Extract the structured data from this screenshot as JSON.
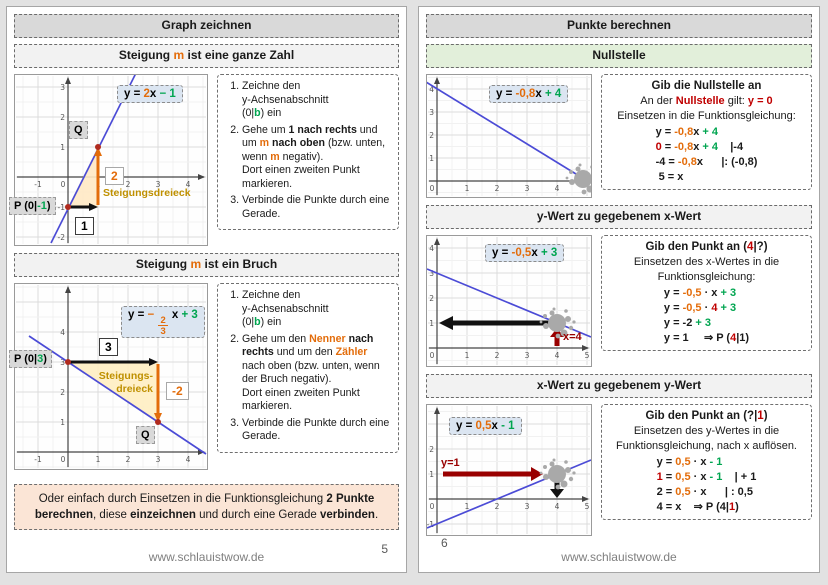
{
  "colors": {
    "orange": "#e36c0a",
    "green": "#00a550",
    "red": "#c00000",
    "dark_red": "#990000",
    "gold": "#bf9000",
    "line_blue": "#4b4bd6",
    "header_gray": "#d9d9d9",
    "section_gray": "#f2f2f2",
    "section_green": "#e2efda",
    "note_bg": "#fbe5d6",
    "eq_box_bg": "#dbe5f1"
  },
  "left": {
    "title": "Graph zeichnen",
    "footer_url": "www.schlauistwow.de",
    "page_number": "5",
    "sec1": {
      "heading": [
        [
          "Steigung ",
          "b"
        ],
        [
          "m",
          "bo"
        ],
        [
          " ist eine ganze Zahl",
          "b"
        ]
      ],
      "equation": [
        [
          "y = ",
          "b"
        ],
        [
          "2",
          "bo"
        ],
        [
          "x ",
          "b"
        ],
        [
          "− 1",
          "bg"
        ]
      ],
      "p_label": [
        [
          "P (0|",
          "b"
        ],
        [
          "-1",
          "bg"
        ],
        [
          ")",
          "b"
        ]
      ],
      "q_label": [
        [
          "Q",
          "b"
        ]
      ],
      "run_label": [
        [
          "1",
          "b"
        ]
      ],
      "rise_label": [
        [
          "2",
          "bo"
        ]
      ],
      "triangle_label": [
        [
          "Steigungsdreieck",
          "by"
        ]
      ],
      "steps": [
        [
          [
            "Zeichne den\n y-Achsenabschnitt\n(0|",
            ""
          ],
          [
            "b",
            "bg"
          ],
          [
            ") ein",
            ""
          ]
        ],
        [
          [
            "Gehe um ",
            ""
          ],
          [
            "1 nach rechts",
            "b"
          ],
          [
            " und um ",
            ""
          ],
          [
            "m",
            "bo"
          ],
          [
            " ",
            ""
          ],
          [
            "nach oben",
            "b"
          ],
          [
            " (bzw. unten, wenn ",
            ""
          ],
          [
            "m",
            "bo"
          ],
          [
            " negativ).\nDort einen zweiten Punkt markieren.",
            ""
          ]
        ],
        [
          [
            "Verbinde die Punkte durch eine Gerade.",
            ""
          ]
        ]
      ]
    },
    "sec2": {
      "heading": [
        [
          "Steigung ",
          "b"
        ],
        [
          "m",
          "bo"
        ],
        [
          " ist ein Bruch",
          "b"
        ]
      ],
      "equation": [
        [
          "y = ",
          "b"
        ],
        [
          "− ",
          "bo"
        ],
        [
          "2/3",
          "bof"
        ],
        [
          " x ",
          "b"
        ],
        [
          "+ 3",
          "bg"
        ]
      ],
      "p_label": [
        [
          "P (0|",
          "b"
        ],
        [
          "3",
          "bg"
        ],
        [
          ")",
          "b"
        ]
      ],
      "q_label": [
        [
          "Q",
          "b"
        ]
      ],
      "run_label": [
        [
          "3",
          "b"
        ]
      ],
      "rise_label": [
        [
          "-2",
          "bo"
        ]
      ],
      "triangle_label": [
        [
          "Steigungs-\ndreieck",
          "by"
        ]
      ],
      "steps": [
        [
          [
            "Zeichne den\n y-Achsenabschnitt\n(0|",
            ""
          ],
          [
            "b",
            "bg"
          ],
          [
            ") ein",
            ""
          ]
        ],
        [
          [
            "Gehe um den ",
            ""
          ],
          [
            "Nenner",
            "bo"
          ],
          [
            " ",
            ""
          ],
          [
            "nach rechts",
            "b"
          ],
          [
            " und um den ",
            ""
          ],
          [
            "Zähler",
            "bo"
          ],
          [
            " nach oben (bzw. unten, wenn der Bruch negativ).\nDort einen zweiten Punkt markieren.",
            ""
          ]
        ],
        [
          [
            "Verbinde die Punkte durch eine Gerade.",
            ""
          ]
        ]
      ]
    },
    "note": [
      [
        "Oder einfach durch Einsetzen in die Funktionsgleichung ",
        ""
      ],
      [
        "2 Punkte berechnen",
        "b"
      ],
      [
        ", diese ",
        ""
      ],
      [
        "einzeichnen",
        "b"
      ],
      [
        " und durch eine Gerade ",
        ""
      ],
      [
        "verbinden",
        "b"
      ],
      [
        ".",
        ""
      ]
    ]
  },
  "right": {
    "title": "Punkte berechnen",
    "footer_url": "www.schlauistwow.de",
    "page_number": "6",
    "nullstelle": {
      "heading": "Nullstelle",
      "equation": [
        [
          "y = ",
          "b"
        ],
        [
          "-0,8",
          "bo"
        ],
        [
          "x ",
          "b"
        ],
        [
          "+ 4",
          "bg"
        ]
      ],
      "box": {
        "title": [
          [
            "Gib die Nullstelle an",
            "b"
          ]
        ],
        "intro1": [
          [
            "An der ",
            ""
          ],
          [
            "Nullstelle",
            "br"
          ],
          [
            " gilt: ",
            ""
          ],
          [
            "y = 0",
            "br"
          ]
        ],
        "intro2": [
          [
            "Einsetzen in die Funktionsgleichung:",
            ""
          ]
        ],
        "eqs": [
          [
            [
              "y = ",
              "b"
            ],
            [
              "-0,8",
              "bo"
            ],
            [
              "x",
              "b"
            ],
            [
              " + 4",
              "bg"
            ]
          ],
          [
            [
              "0",
              "br"
            ],
            [
              " = ",
              "b"
            ],
            [
              "-0,8",
              "bo"
            ],
            [
              "x",
              "b"
            ],
            [
              " + 4",
              "bg"
            ],
            [
              "    |-4",
              "b"
            ]
          ],
          [
            [
              "-4 = ",
              "b"
            ],
            [
              "-0,8",
              "bo"
            ],
            [
              "x",
              "b"
            ],
            [
              "      |: (-0,8)",
              "b"
            ]
          ],
          [
            [
              " 5 = x",
              "b"
            ]
          ]
        ]
      }
    },
    "y_from_x": {
      "heading": "y-Wert zu gegebenem x-Wert",
      "equation": [
        [
          "y = ",
          "b"
        ],
        [
          "-0,5",
          "bo"
        ],
        [
          "x ",
          "b"
        ],
        [
          "+ 3",
          "bg"
        ]
      ],
      "x_marker": "x=4",
      "box": {
        "title": [
          [
            "Gib den Punkt an (",
            "b"
          ],
          [
            "4",
            "br"
          ],
          [
            "|?)",
            "b"
          ]
        ],
        "intro1": [
          [
            "Einsetzen des x-Wertes in die Funktionsgleichung:",
            ""
          ]
        ],
        "eqs": [
          [
            [
              "y = ",
              "b"
            ],
            [
              "-0,5",
              "bo"
            ],
            [
              " · x ",
              "b"
            ],
            [
              "+ 3",
              "bg"
            ]
          ],
          [
            [
              "y = ",
              "b"
            ],
            [
              "-0,5",
              "bo"
            ],
            [
              " · ",
              "b"
            ],
            [
              "4",
              "br"
            ],
            [
              " + 3",
              "bg"
            ]
          ],
          [
            [
              "y = -2 ",
              "b"
            ],
            [
              "+ 3",
              "bg"
            ]
          ],
          [
            [
              "y = 1",
              "b"
            ],
            [
              "     ⇒ P (",
              "b"
            ],
            [
              "4",
              "br"
            ],
            [
              "|1)",
              "b"
            ]
          ]
        ]
      }
    },
    "x_from_y": {
      "heading": "x-Wert zu gegebenem y-Wert",
      "equation": [
        [
          "y = ",
          "b"
        ],
        [
          "0,5",
          "bo"
        ],
        [
          "x ",
          "b"
        ],
        [
          "- 1",
          "bg"
        ]
      ],
      "y_marker": "y=1",
      "box": {
        "title": [
          [
            "Gib den Punkt an (?|",
            "b"
          ],
          [
            "1",
            "br"
          ],
          [
            ")",
            "b"
          ]
        ],
        "intro1": [
          [
            "Einsetzen des y-Wertes in die Funktionsgleichung, nach x auflösen.",
            ""
          ]
        ],
        "eqs": [
          [
            [
              "y = ",
              "b"
            ],
            [
              "0,5",
              "bo"
            ],
            [
              " · x ",
              "b"
            ],
            [
              "- 1",
              "bg"
            ]
          ],
          [
            [
              "1",
              "br"
            ],
            [
              " = ",
              "b"
            ],
            [
              "0,5",
              "bo"
            ],
            [
              " · x ",
              "b"
            ],
            [
              "- 1",
              "bg"
            ],
            [
              "    | + 1",
              "b"
            ]
          ],
          [
            [
              "2 = ",
              "b"
            ],
            [
              "0,5",
              "bo"
            ],
            [
              " · x",
              "b"
            ],
            [
              "      | : 0,5",
              "b"
            ]
          ],
          [
            [
              "4 = x",
              "b"
            ],
            [
              "    ⇒ P (4|",
              "b"
            ],
            [
              "1",
              "br"
            ],
            [
              ")",
              "b"
            ]
          ]
        ]
      }
    }
  },
  "chart_data": [
    {
      "type": "line",
      "equation": "y = 2x - 1",
      "slope": 2,
      "intercept": -1,
      "points": [
        {
          "label": "P",
          "x": 0,
          "y": -1
        },
        {
          "label": "Q",
          "x": 1,
          "y": 1
        }
      ],
      "slope_triangle": {
        "run": 1,
        "rise": 2,
        "label": "Steigungsdreieck"
      },
      "x_ticks": [
        -1,
        0,
        1,
        2,
        3,
        4
      ],
      "y_ticks": [
        -2,
        -1,
        1,
        2,
        3
      ],
      "x_range": [
        -1.7,
        4.6
      ],
      "y_range": [
        -2.3,
        3.4
      ],
      "grid": true
    },
    {
      "type": "line",
      "equation": "y = -2/3 x + 3",
      "slope": -0.667,
      "intercept": 3,
      "points": [
        {
          "label": "P",
          "x": 0,
          "y": 3
        },
        {
          "label": "Q",
          "x": 3,
          "y": 1
        }
      ],
      "slope_triangle": {
        "run": 3,
        "rise": -2,
        "label": "Steigungs-dreieck"
      },
      "x_ticks": [
        -1,
        0,
        1,
        2,
        3,
        4
      ],
      "y_ticks": [
        1,
        2,
        3,
        4
      ],
      "x_range": [
        -1.7,
        4.6
      ],
      "y_range": [
        -0.5,
        4.7
      ],
      "grid": true
    },
    {
      "type": "line",
      "equation": "y = -0,8x + 4",
      "slope": -0.8,
      "intercept": 4,
      "zero_point": {
        "x": 5,
        "y": 0
      },
      "x_ticks": [
        0,
        1,
        2,
        3,
        4
      ],
      "y_ticks": [
        1,
        2,
        3,
        4
      ],
      "x_range": [
        -0.3,
        5.2
      ],
      "y_range": [
        -0.6,
        4.4
      ],
      "grid": true
    },
    {
      "type": "line",
      "equation": "y = -0,5x + 3",
      "slope": -0.5,
      "intercept": 3,
      "marked_point": {
        "x": 4,
        "y": 1
      },
      "annotation": "x=4",
      "x_ticks": [
        0,
        1,
        2,
        3,
        4,
        5
      ],
      "y_ticks": [
        1,
        2,
        3,
        4
      ],
      "x_range": [
        -0.3,
        5.2
      ],
      "y_range": [
        -0.7,
        4.5
      ],
      "grid": true
    },
    {
      "type": "line",
      "equation": "y = 0,5x - 1",
      "slope": 0.5,
      "intercept": -1,
      "marked_point": {
        "x": 4,
        "y": 1
      },
      "annotation": "y=1",
      "x_ticks": [
        0,
        1,
        2,
        3,
        4,
        5
      ],
      "y_ticks": [
        -1,
        1,
        2
      ],
      "x_range": [
        -0.3,
        5.2
      ],
      "y_range": [
        -1.4,
        3.8
      ],
      "grid": true
    }
  ]
}
